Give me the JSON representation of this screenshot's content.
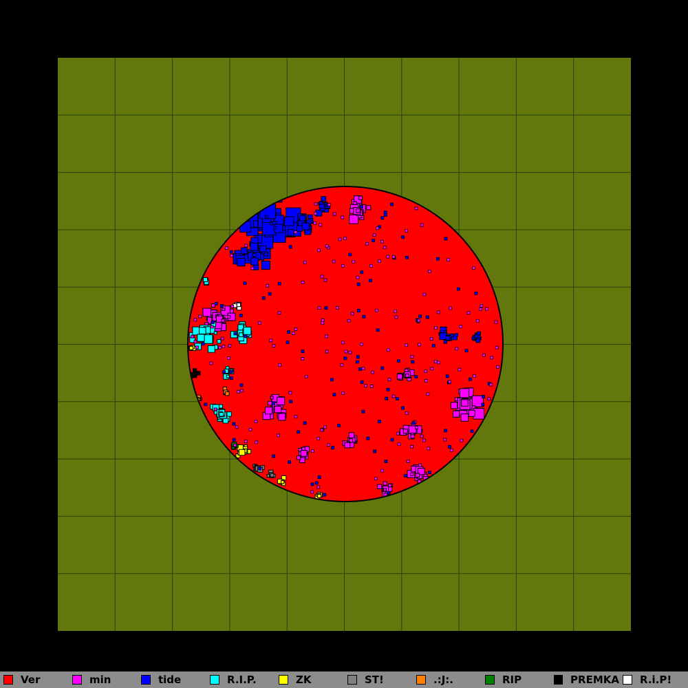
{
  "map": {
    "background": "#62780c",
    "grid_color": "#24420a",
    "grid_divisions": 10,
    "outline_color": "#000000"
  },
  "legend": [
    {
      "name": "Ver",
      "color": "#ff0000"
    },
    {
      "name": "min",
      "color": "#ff00ff"
    },
    {
      "name": "tide",
      "color": "#0000ff"
    },
    {
      "name": "R.I.P.",
      "color": "#00ffff"
    },
    {
      "name": "ZK",
      "color": "#ffff00"
    },
    {
      "name": "ST!",
      "color": "#808080"
    },
    {
      "name": ".:J:.",
      "color": "#ff8000"
    },
    {
      "name": "RIP",
      "color": "#008000"
    },
    {
      "name": "PREMKA",
      "color": "#000000"
    },
    {
      "name": "R.i.P!",
      "color": "#ffffff"
    }
  ]
}
